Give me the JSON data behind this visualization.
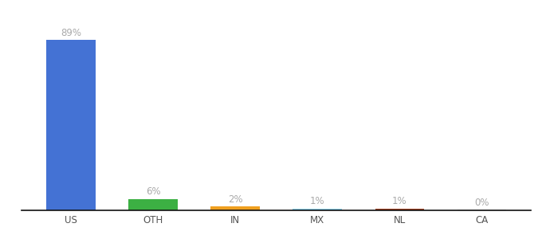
{
  "categories": [
    "US",
    "OTH",
    "IN",
    "MX",
    "NL",
    "CA"
  ],
  "values": [
    89,
    6,
    2,
    1,
    1,
    0.3
  ],
  "labels": [
    "89%",
    "6%",
    "2%",
    "1%",
    "1%",
    "0%"
  ],
  "bar_colors": [
    "#4472d4",
    "#3cb043",
    "#f0a020",
    "#87ceeb",
    "#a04020",
    "#cccccc"
  ],
  "background_color": "#ffffff",
  "label_fontsize": 8.5,
  "tick_fontsize": 8.5,
  "label_color": "#aaaaaa",
  "tick_color": "#555555",
  "ylim": [
    0,
    100
  ]
}
